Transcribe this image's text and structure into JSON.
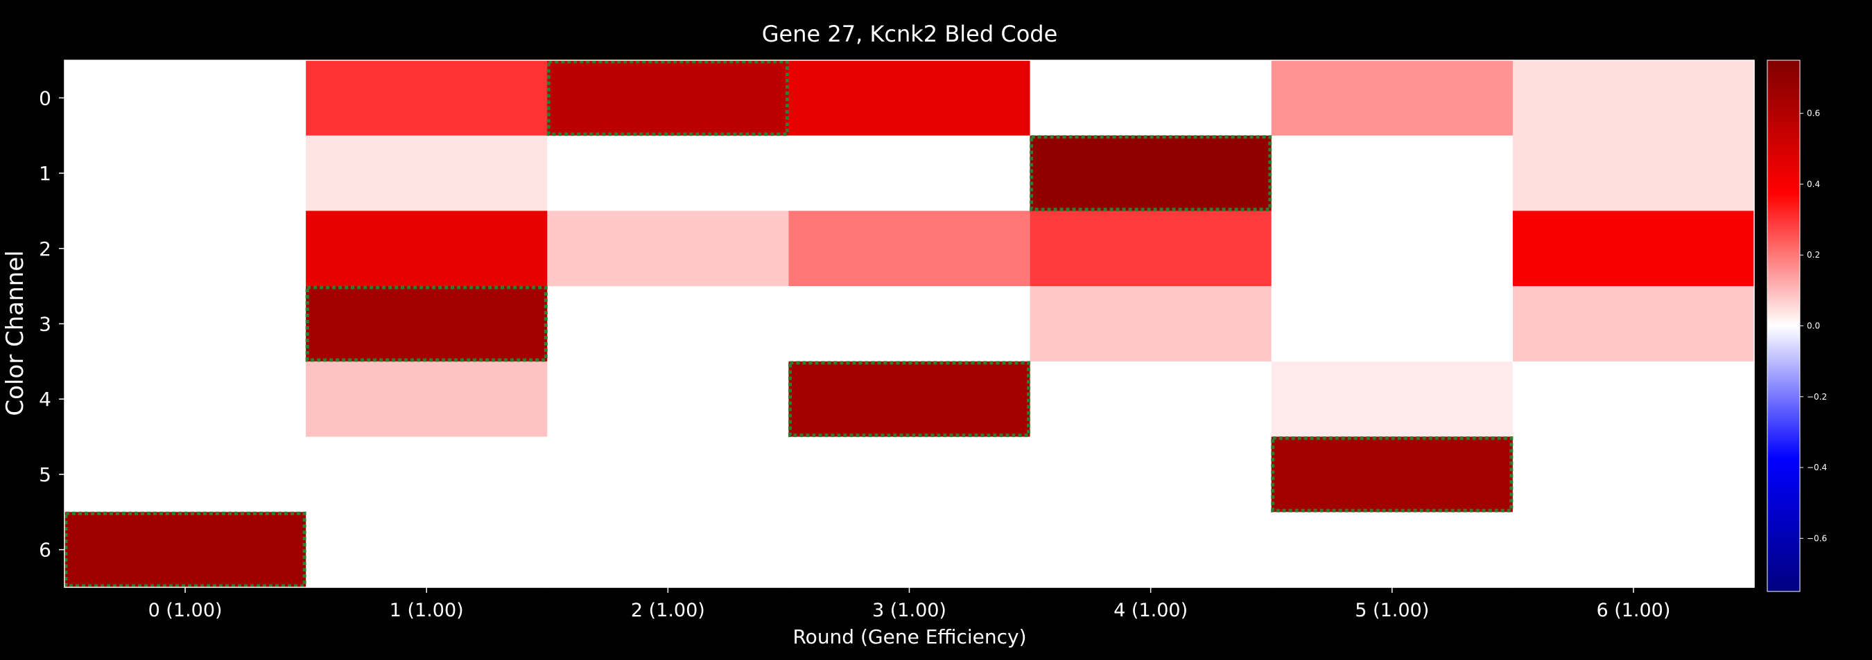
{
  "chart_data": {
    "type": "heatmap",
    "title": "Gene 27, Kcnk2 Bled Code",
    "xlabel": "Round (Gene Efficiency)",
    "ylabel": "Color Channel",
    "x_tick_labels": [
      "0 (1.00)",
      "1 (1.00)",
      "2 (1.00)",
      "3 (1.00)",
      "4 (1.00)",
      "5 (1.00)",
      "6 (1.00)"
    ],
    "y_tick_labels": [
      "0",
      "1",
      "2",
      "3",
      "4",
      "5",
      "6"
    ],
    "colormap": "bwr",
    "colors": {
      "background": "#000000",
      "low": "#000080",
      "mid_low": "#0000ff",
      "mid": "#ffffff",
      "mid_high": "#ff0000",
      "high": "#800000",
      "highlight_border": "#2e7d32",
      "text": "#ffffff"
    },
    "colorbar": {
      "range": [
        -0.75,
        0.75
      ],
      "tick_values": [
        0.6,
        0.4,
        0.2,
        0.0,
        -0.2,
        -0.4,
        -0.6
      ],
      "tick_labels": [
        "0.6",
        "0.4",
        "0.2",
        "0.0",
        "−0.2",
        "−0.4",
        "−0.6"
      ]
    },
    "values": [
      [
        0.0,
        0.3,
        0.58,
        0.45,
        0.0,
        0.16,
        0.05
      ],
      [
        0.0,
        0.04,
        0.0,
        0.0,
        0.7,
        0.0,
        0.05
      ],
      [
        0.0,
        0.44,
        0.08,
        0.2,
        0.29,
        0.0,
        0.4
      ],
      [
        0.0,
        0.65,
        0.0,
        0.0,
        0.08,
        0.0,
        0.08
      ],
      [
        0.0,
        0.09,
        0.0,
        0.65,
        0.0,
        0.03,
        0.0
      ],
      [
        0.0,
        0.0,
        0.0,
        0.0,
        0.0,
        0.65,
        0.0
      ],
      [
        0.66,
        0.0,
        0.0,
        0.0,
        0.0,
        0.0,
        0.0
      ]
    ],
    "highlighted_cells": [
      {
        "round": 0,
        "channel": 6
      },
      {
        "round": 1,
        "channel": 3
      },
      {
        "round": 2,
        "channel": 0
      },
      {
        "round": 3,
        "channel": 4
      },
      {
        "round": 4,
        "channel": 1
      },
      {
        "round": 5,
        "channel": 5
      }
    ]
  }
}
